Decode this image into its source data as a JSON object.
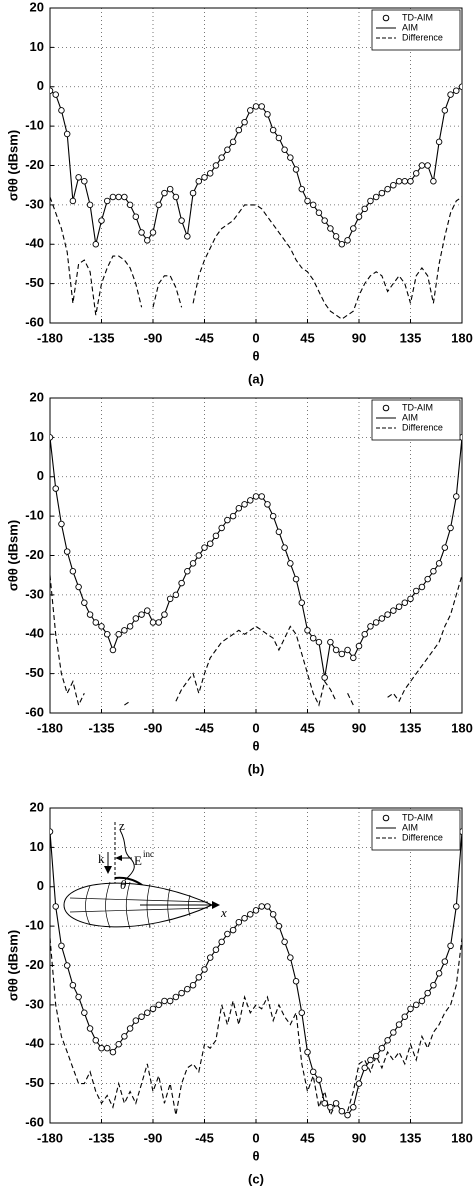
{
  "chart_data": [
    {
      "type": "line",
      "caption": "(a)",
      "xlabel": "θ",
      "ylabel": "σθθ (dBsm)",
      "grid": true,
      "legend": "upper right",
      "xlim": [
        -180,
        180
      ],
      "ylim": [
        -60,
        20
      ],
      "xticks": [
        -180,
        -135,
        -90,
        -45,
        0,
        45,
        90,
        135,
        180
      ],
      "yticks": [
        -60,
        -50,
        -40,
        -30,
        -20,
        -10,
        0,
        10,
        20
      ],
      "x": [
        -180,
        -175,
        -170,
        -165,
        -160,
        -155,
        -150,
        -145,
        -140,
        -135,
        -130,
        -125,
        -120,
        -115,
        -110,
        -105,
        -100,
        -95,
        -90,
        -85,
        -80,
        -75,
        -70,
        -65,
        -60,
        -55,
        -50,
        -45,
        -40,
        -35,
        -30,
        -25,
        -20,
        -15,
        -10,
        -5,
        0,
        5,
        10,
        15,
        20,
        25,
        30,
        35,
        40,
        45,
        50,
        55,
        60,
        65,
        70,
        75,
        80,
        85,
        90,
        95,
        100,
        105,
        110,
        115,
        120,
        125,
        130,
        135,
        140,
        145,
        150,
        155,
        160,
        165,
        170,
        175,
        180
      ],
      "series": [
        {
          "name": "TD-AIM",
          "color": "#000000",
          "style": "markers",
          "values": [
            -1,
            -2,
            -6,
            -12,
            -29,
            -23,
            -24,
            -30,
            -40,
            -34,
            -29,
            -28,
            -28,
            -28,
            -30,
            -33,
            -37,
            -39,
            -37,
            -30,
            -27,
            -26,
            -28,
            -34,
            -38,
            -27,
            -24,
            -23,
            -22,
            -20,
            -18,
            -16,
            -14,
            -11,
            -9,
            -6,
            -5,
            -5,
            -7,
            -11,
            -13,
            -16,
            -18,
            -21,
            -26,
            -29,
            -30,
            -32,
            -34,
            -36,
            -38,
            -40,
            -39,
            -36,
            -33,
            -31,
            -29,
            -28,
            -27,
            -26,
            -25,
            -24,
            -24,
            -24,
            -22,
            -20,
            -20,
            -24,
            -14,
            -6,
            -2,
            -1,
            0
          ]
        },
        {
          "name": "AIM",
          "color": "#000000",
          "style": "solid",
          "values": [
            -1,
            -2,
            -6,
            -12,
            -29,
            -23,
            -24,
            -30,
            -40,
            -34,
            -29,
            -28,
            -28,
            -28,
            -30,
            -33,
            -37,
            -39,
            -37,
            -30,
            -27,
            -26,
            -28,
            -34,
            -38,
            -27,
            -24,
            -23,
            -22,
            -20,
            -18,
            -16,
            -14,
            -11,
            -9,
            -6,
            -5,
            -5,
            -7,
            -11,
            -13,
            -16,
            -18,
            -21,
            -26,
            -29,
            -30,
            -32,
            -34,
            -36,
            -38,
            -40,
            -39,
            -36,
            -33,
            -31,
            -29,
            -28,
            -27,
            -26,
            -25,
            -24,
            -24,
            -24,
            -22,
            -20,
            -20,
            -24,
            -14,
            -6,
            -2,
            -1,
            0
          ]
        },
        {
          "name": "Difference",
          "color": "#000000",
          "style": "dashed",
          "values": [
            -28,
            -32,
            -36,
            -42,
            -55,
            -45,
            -44,
            -47,
            -58,
            -50,
            -46,
            -43,
            -43,
            -44,
            -46,
            -50,
            -56,
            null,
            -56,
            -50,
            -48,
            -48,
            -51,
            -56,
            null,
            -55,
            -48,
            -44,
            -41,
            -38,
            -36,
            -35,
            -34,
            -32,
            -30,
            -30,
            -30,
            -31,
            -33,
            -35,
            -37,
            -39,
            -41,
            -44,
            -46,
            -47,
            -49,
            -52,
            -55,
            -57,
            -58,
            -59,
            -58,
            -57,
            -53,
            -50,
            -48,
            -47,
            -48,
            -52,
            -50,
            -48,
            -50,
            -55,
            -48,
            -46,
            -48,
            -55,
            -45,
            -38,
            -32,
            -29,
            -28
          ]
        }
      ]
    },
    {
      "type": "line",
      "caption": "(b)",
      "xlabel": "θ",
      "ylabel": "σθθ (dBsm)",
      "grid": true,
      "legend": "upper right",
      "xlim": [
        -180,
        180
      ],
      "ylim": [
        -60,
        20
      ],
      "xticks": [
        -180,
        -135,
        -90,
        -45,
        0,
        45,
        90,
        135,
        180
      ],
      "yticks": [
        -60,
        -50,
        -40,
        -30,
        -20,
        -10,
        0,
        10,
        20
      ],
      "x": [
        -180,
        -175,
        -170,
        -165,
        -160,
        -155,
        -150,
        -145,
        -140,
        -135,
        -130,
        -125,
        -120,
        -115,
        -110,
        -105,
        -100,
        -95,
        -90,
        -85,
        -80,
        -75,
        -70,
        -65,
        -60,
        -55,
        -50,
        -45,
        -40,
        -35,
        -30,
        -25,
        -20,
        -15,
        -10,
        -5,
        0,
        5,
        10,
        15,
        20,
        25,
        30,
        35,
        40,
        45,
        50,
        55,
        60,
        65,
        70,
        75,
        80,
        85,
        90,
        95,
        100,
        105,
        110,
        115,
        120,
        125,
        130,
        135,
        140,
        145,
        150,
        155,
        160,
        165,
        170,
        175,
        180
      ],
      "series": [
        {
          "name": "TD-AIM",
          "color": "#000000",
          "style": "markers",
          "values": [
            10,
            -3,
            -12,
            -19,
            -24,
            -28,
            -32,
            -35,
            -37,
            -38,
            -40,
            -44,
            -40,
            -39,
            -38,
            -36,
            -35,
            -34,
            -37,
            -37,
            -35,
            -31,
            -30,
            -27,
            -24,
            -22,
            -20,
            -18,
            -17,
            -15,
            -13,
            -11,
            -10,
            -8,
            -7,
            -6,
            -5,
            -5,
            -7,
            -10,
            -14,
            -18,
            -22,
            -26,
            -32,
            -39,
            -41,
            -42,
            -51,
            -42,
            -44,
            -45,
            -44,
            -46,
            -43,
            -40,
            -38,
            -37,
            -36,
            -35,
            -34,
            -33,
            -32,
            -31,
            -29,
            -28,
            -26,
            -24,
            -22,
            -18,
            -13,
            -5,
            10
          ]
        },
        {
          "name": "AIM",
          "color": "#000000",
          "style": "solid",
          "values": [
            10,
            -3,
            -12,
            -19,
            -24,
            -28,
            -32,
            -35,
            -37,
            -38,
            -40,
            -44,
            -40,
            -39,
            -38,
            -36,
            -35,
            -34,
            -37,
            -37,
            -35,
            -31,
            -30,
            -27,
            -24,
            -22,
            -20,
            -18,
            -17,
            -15,
            -13,
            -11,
            -10,
            -8,
            -7,
            -6,
            -5,
            -5,
            -7,
            -10,
            -14,
            -18,
            -22,
            -26,
            -32,
            -39,
            -41,
            -42,
            -51,
            -42,
            -44,
            -45,
            -44,
            -46,
            -43,
            -40,
            -38,
            -37,
            -36,
            -35,
            -34,
            -33,
            -32,
            -31,
            -29,
            -28,
            -26,
            -24,
            -22,
            -18,
            -13,
            -5,
            10
          ]
        },
        {
          "name": "Difference",
          "color": "#000000",
          "style": "dashed",
          "values": [
            -25,
            -40,
            -50,
            -55,
            -52,
            -58,
            -55,
            null,
            -57,
            null,
            -58,
            null,
            null,
            -58,
            -57,
            null,
            -58,
            null,
            null,
            null,
            null,
            null,
            -57,
            -54,
            -52,
            -50,
            -55,
            -50,
            -46,
            -44,
            -42,
            -41,
            -40,
            -39,
            -40,
            -39,
            -38,
            -39,
            -40,
            -41,
            -44,
            -41,
            -38,
            -40,
            -45,
            -50,
            -55,
            -58,
            -52,
            -54,
            -57,
            null,
            -55,
            -58,
            null,
            -57,
            null,
            -58,
            null,
            -56,
            -55,
            -57,
            -54,
            -52,
            -50,
            -48,
            -46,
            -44,
            -42,
            -38,
            -35,
            -30,
            -25
          ]
        }
      ]
    },
    {
      "type": "line",
      "caption": "(c)",
      "xlabel": "θ",
      "ylabel": "σθθ (dBsm)",
      "grid": true,
      "legend": "upper right",
      "annotations": [
        "z",
        "k",
        "E",
        "inc",
        "θ",
        "x"
      ],
      "xlim": [
        -180,
        180
      ],
      "ylim": [
        -60,
        20
      ],
      "xticks": [
        -180,
        -135,
        -90,
        -45,
        0,
        45,
        90,
        135,
        180
      ],
      "yticks": [
        -60,
        -50,
        -40,
        -30,
        -20,
        -10,
        0,
        10,
        20
      ],
      "x": [
        -180,
        -175,
        -170,
        -165,
        -160,
        -155,
        -150,
        -145,
        -140,
        -135,
        -130,
        -125,
        -120,
        -115,
        -110,
        -105,
        -100,
        -95,
        -90,
        -85,
        -80,
        -75,
        -70,
        -65,
        -60,
        -55,
        -50,
        -45,
        -40,
        -35,
        -30,
        -25,
        -20,
        -15,
        -10,
        -5,
        0,
        5,
        10,
        15,
        20,
        25,
        30,
        35,
        40,
        45,
        50,
        55,
        60,
        65,
        70,
        75,
        80,
        85,
        90,
        95,
        100,
        105,
        110,
        115,
        120,
        125,
        130,
        135,
        140,
        145,
        150,
        155,
        160,
        165,
        170,
        175,
        180
      ],
      "series": [
        {
          "name": "TD-AIM",
          "color": "#000000",
          "style": "markers",
          "values": [
            14,
            -5,
            -15,
            -20,
            -25,
            -28,
            -32,
            -36,
            -39,
            -41,
            -41,
            -42,
            -40,
            -38,
            -36,
            -34,
            -33,
            -32,
            -31,
            -30,
            -29,
            -29,
            -28,
            -27,
            -26,
            -25,
            -23,
            -21,
            -18,
            -16,
            -14,
            -12,
            -11,
            -9,
            -8,
            -7,
            -6,
            -5,
            -5,
            -7,
            -10,
            -14,
            -18,
            -24,
            -32,
            -42,
            -47,
            -49,
            -55,
            -56,
            -55,
            -57,
            -58,
            -56,
            -50,
            -46,
            -44,
            -43,
            -41,
            -39,
            -37,
            -35,
            -33,
            -31,
            -30,
            -29,
            -27,
            -25,
            -22,
            -19,
            -15,
            -5,
            14
          ]
        },
        {
          "name": "AIM",
          "color": "#000000",
          "style": "solid",
          "values": [
            14,
            -5,
            -15,
            -20,
            -25,
            -28,
            -32,
            -36,
            -39,
            -41,
            -41,
            -42,
            -40,
            -38,
            -36,
            -34,
            -33,
            -32,
            -31,
            -30,
            -29,
            -29,
            -28,
            -27,
            -26,
            -25,
            -23,
            -21,
            -18,
            -16,
            -14,
            -12,
            -11,
            -9,
            -8,
            -7,
            -6,
            -5,
            -5,
            -7,
            -10,
            -14,
            -18,
            -24,
            -32,
            -42,
            -47,
            -49,
            -55,
            -56,
            -55,
            -57,
            -58,
            -56,
            -50,
            -46,
            -44,
            -43,
            -41,
            -39,
            -37,
            -35,
            -33,
            -31,
            -30,
            -29,
            -27,
            -25,
            -22,
            -19,
            -15,
            -5,
            14
          ]
        },
        {
          "name": "Difference",
          "color": "#000000",
          "style": "dashed",
          "values": [
            -13,
            -30,
            -38,
            -42,
            -46,
            -50,
            -50,
            -47,
            -52,
            -55,
            -53,
            -56,
            -50,
            -55,
            -52,
            -55,
            -50,
            -45,
            -52,
            -48,
            -55,
            -50,
            -58,
            -50,
            -46,
            -45,
            -47,
            -40,
            -41,
            -39,
            -30,
            -35,
            -29,
            -35,
            -28,
            -32,
            -30,
            -31,
            -28,
            -34,
            -30,
            -33,
            -35,
            -32,
            -45,
            -52,
            -48,
            -56,
            -52,
            -58,
            -55,
            null,
            -57,
            -52,
            -45,
            -44,
            -47,
            -43,
            -46,
            -42,
            -44,
            -42,
            -45,
            -40,
            -44,
            -38,
            -41,
            -37,
            -35,
            -32,
            -30,
            -25,
            -13
          ]
        }
      ]
    }
  ]
}
